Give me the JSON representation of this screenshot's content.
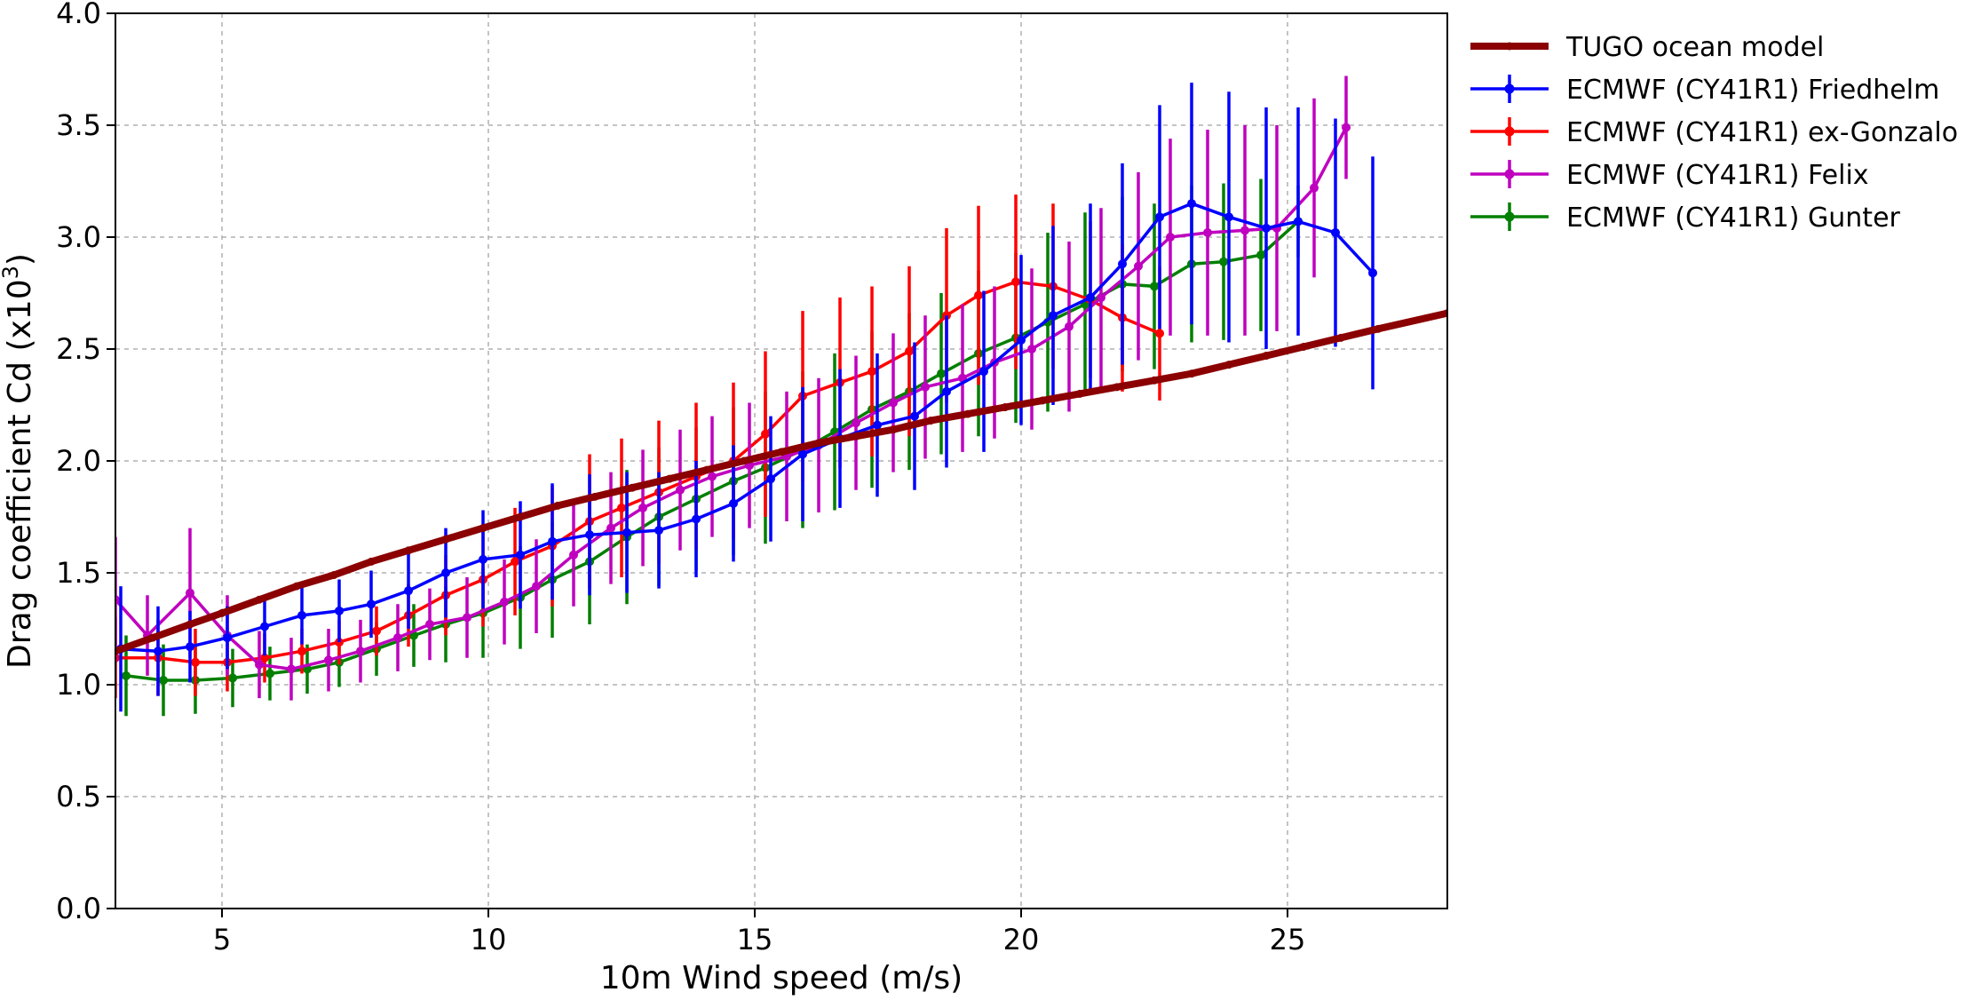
{
  "chart_data": {
    "type": "line",
    "xlabel": "10m Wind speed (m/s)",
    "ylabel": "Drag coefficient Cd (x10",
    "ylabel_sup": "3",
    "ylabel_close": ")",
    "xlim": [
      3,
      28
    ],
    "ylim": [
      0.0,
      4.0
    ],
    "xticks": [
      5,
      10,
      15,
      20,
      25
    ],
    "yticks": [
      0.0,
      0.5,
      1.0,
      1.5,
      2.0,
      2.5,
      3.0,
      3.5,
      4.0
    ],
    "xtick_labels": [
      "5",
      "10",
      "15",
      "20",
      "25"
    ],
    "ytick_labels": [
      "0.0",
      "0.5",
      "1.0",
      "1.5",
      "2.0",
      "2.5",
      "3.0",
      "3.5",
      "4.0"
    ],
    "grid": true,
    "legend_position": "outside-top-right",
    "series": [
      {
        "name": "TUGO ocean model",
        "color": "#8b0000",
        "style": "thick",
        "x": [
          3,
          3.7,
          4.4,
          5.0,
          5.7,
          6.4,
          7.1,
          7.8,
          8.5,
          9.2,
          9.9,
          10.6,
          11.3,
          12.0,
          12.7,
          13.4,
          14.1,
          14.8,
          15.5,
          16.2,
          16.9,
          17.6,
          18.3,
          19.0,
          19.7,
          20.4,
          21.1,
          21.8,
          22.5,
          23.2,
          23.9,
          24.6,
          25.3,
          26.0,
          26.7,
          28
        ],
        "y": [
          1.15,
          1.21,
          1.27,
          1.32,
          1.38,
          1.44,
          1.49,
          1.55,
          1.6,
          1.65,
          1.7,
          1.75,
          1.8,
          1.84,
          1.88,
          1.92,
          1.96,
          2.0,
          2.04,
          2.08,
          2.11,
          2.14,
          2.18,
          2.21,
          2.24,
          2.27,
          2.3,
          2.33,
          2.36,
          2.39,
          2.43,
          2.47,
          2.51,
          2.55,
          2.59,
          2.66
        ]
      },
      {
        "name": "ECMWF (CY41R1) Friedhelm",
        "color": "#0000ff",
        "x": [
          3.1,
          3.8,
          4.4,
          5.1,
          5.8,
          6.5,
          7.2,
          7.8,
          8.5,
          9.2,
          9.9,
          10.6,
          11.2,
          11.9,
          12.6,
          13.2,
          13.9,
          14.6,
          15.3,
          15.9,
          16.6,
          17.3,
          18.0,
          18.6,
          19.3,
          20.0,
          20.6,
          21.3,
          21.9,
          22.6,
          23.2,
          23.9,
          24.6,
          25.2,
          25.9,
          26.6
        ],
        "y": [
          1.16,
          1.15,
          1.17,
          1.21,
          1.26,
          1.31,
          1.33,
          1.36,
          1.42,
          1.5,
          1.56,
          1.58,
          1.64,
          1.67,
          1.68,
          1.69,
          1.74,
          1.81,
          1.92,
          2.03,
          2.1,
          2.16,
          2.2,
          2.31,
          2.4,
          2.54,
          2.65,
          2.73,
          2.88,
          3.09,
          3.15,
          3.09,
          3.04,
          3.07,
          3.02,
          2.84
        ],
        "err": [
          0.28,
          0.2,
          0.16,
          0.14,
          0.13,
          0.13,
          0.14,
          0.15,
          0.17,
          0.2,
          0.22,
          0.24,
          0.26,
          0.27,
          0.27,
          0.26,
          0.26,
          0.26,
          0.28,
          0.3,
          0.31,
          0.32,
          0.33,
          0.34,
          0.36,
          0.38,
          0.4,
          0.42,
          0.45,
          0.5,
          0.54,
          0.56,
          0.54,
          0.51,
          0.51,
          0.52
        ]
      },
      {
        "name": "ECMWF (CY41R1) ex-Gonzalo",
        "color": "#ff0000",
        "x": [
          3.0,
          3.8,
          4.5,
          5.1,
          5.8,
          6.5,
          7.2,
          7.9,
          8.5,
          9.2,
          9.9,
          10.5,
          11.2,
          11.9,
          12.5,
          13.2,
          13.9,
          14.6,
          15.2,
          15.9,
          16.6,
          17.2,
          17.9,
          18.6,
          19.2,
          19.9,
          20.6,
          21.3,
          21.9,
          22.6
        ],
        "y": [
          1.12,
          1.12,
          1.1,
          1.1,
          1.12,
          1.15,
          1.19,
          1.24,
          1.31,
          1.4,
          1.47,
          1.55,
          1.62,
          1.73,
          1.79,
          1.86,
          1.93,
          2.0,
          2.12,
          2.29,
          2.35,
          2.4,
          2.49,
          2.65,
          2.74,
          2.8,
          2.78,
          2.72,
          2.64,
          2.57
        ],
        "err": [
          0.18,
          0.17,
          0.15,
          0.13,
          0.11,
          0.1,
          0.1,
          0.11,
          0.14,
          0.18,
          0.21,
          0.24,
          0.27,
          0.3,
          0.31,
          0.32,
          0.33,
          0.35,
          0.37,
          0.38,
          0.38,
          0.38,
          0.38,
          0.39,
          0.4,
          0.39,
          0.37,
          0.35,
          0.33,
          0.3
        ]
      },
      {
        "name": "ECMWF (CY41R1) Felix",
        "color": "#bf00bf",
        "x": [
          3.0,
          3.6,
          4.4,
          5.1,
          5.7,
          6.3,
          7.0,
          7.6,
          8.3,
          8.9,
          9.6,
          10.3,
          10.9,
          11.6,
          12.3,
          12.9,
          13.6,
          14.2,
          14.9,
          15.6,
          16.2,
          16.9,
          17.6,
          18.2,
          18.9,
          19.5,
          20.2,
          20.9,
          21.5,
          22.2,
          22.8,
          23.5,
          24.2,
          24.8,
          25.5,
          26.1
        ],
        "y": [
          1.38,
          1.22,
          1.41,
          1.22,
          1.09,
          1.07,
          1.11,
          1.15,
          1.21,
          1.27,
          1.3,
          1.37,
          1.44,
          1.58,
          1.7,
          1.79,
          1.87,
          1.93,
          1.98,
          2.02,
          2.07,
          2.17,
          2.26,
          2.33,
          2.37,
          2.44,
          2.5,
          2.6,
          2.73,
          2.87,
          3.0,
          3.02,
          3.03,
          3.04,
          3.22,
          3.49
        ],
        "err": [
          0.28,
          0.18,
          0.29,
          0.18,
          0.15,
          0.14,
          0.14,
          0.14,
          0.15,
          0.16,
          0.18,
          0.19,
          0.21,
          0.23,
          0.25,
          0.26,
          0.27,
          0.27,
          0.28,
          0.29,
          0.3,
          0.3,
          0.31,
          0.32,
          0.33,
          0.34,
          0.36,
          0.38,
          0.4,
          0.42,
          0.44,
          0.46,
          0.47,
          0.46,
          0.4,
          0.23
        ]
      },
      {
        "name": "ECMWF (CY41R1) Gunter",
        "color": "#007f00",
        "x": [
          3.2,
          3.9,
          4.5,
          5.2,
          5.9,
          6.6,
          7.2,
          7.9,
          8.6,
          9.2,
          9.9,
          10.6,
          11.2,
          11.9,
          12.6,
          13.2,
          13.9,
          14.6,
          15.2,
          15.9,
          16.5,
          17.2,
          17.9,
          18.5,
          19.2,
          19.9,
          20.5,
          21.2,
          21.9,
          22.5,
          23.2,
          23.8,
          24.5,
          25.2
        ],
        "y": [
          1.04,
          1.02,
          1.02,
          1.03,
          1.05,
          1.07,
          1.1,
          1.16,
          1.22,
          1.27,
          1.32,
          1.39,
          1.47,
          1.55,
          1.66,
          1.75,
          1.83,
          1.91,
          1.97,
          2.05,
          2.13,
          2.23,
          2.31,
          2.39,
          2.48,
          2.55,
          2.62,
          2.7,
          2.79,
          2.78,
          2.88,
          2.89,
          2.92,
          3.07
        ],
        "err": [
          0.18,
          0.16,
          0.15,
          0.13,
          0.12,
          0.11,
          0.11,
          0.12,
          0.14,
          0.17,
          0.2,
          0.23,
          0.26,
          0.28,
          0.3,
          0.31,
          0.32,
          0.33,
          0.34,
          0.35,
          0.35,
          0.35,
          0.35,
          0.36,
          0.37,
          0.38,
          0.4,
          0.41,
          0.39,
          0.37,
          0.35,
          0.35,
          0.34,
          0.16
        ]
      }
    ]
  }
}
